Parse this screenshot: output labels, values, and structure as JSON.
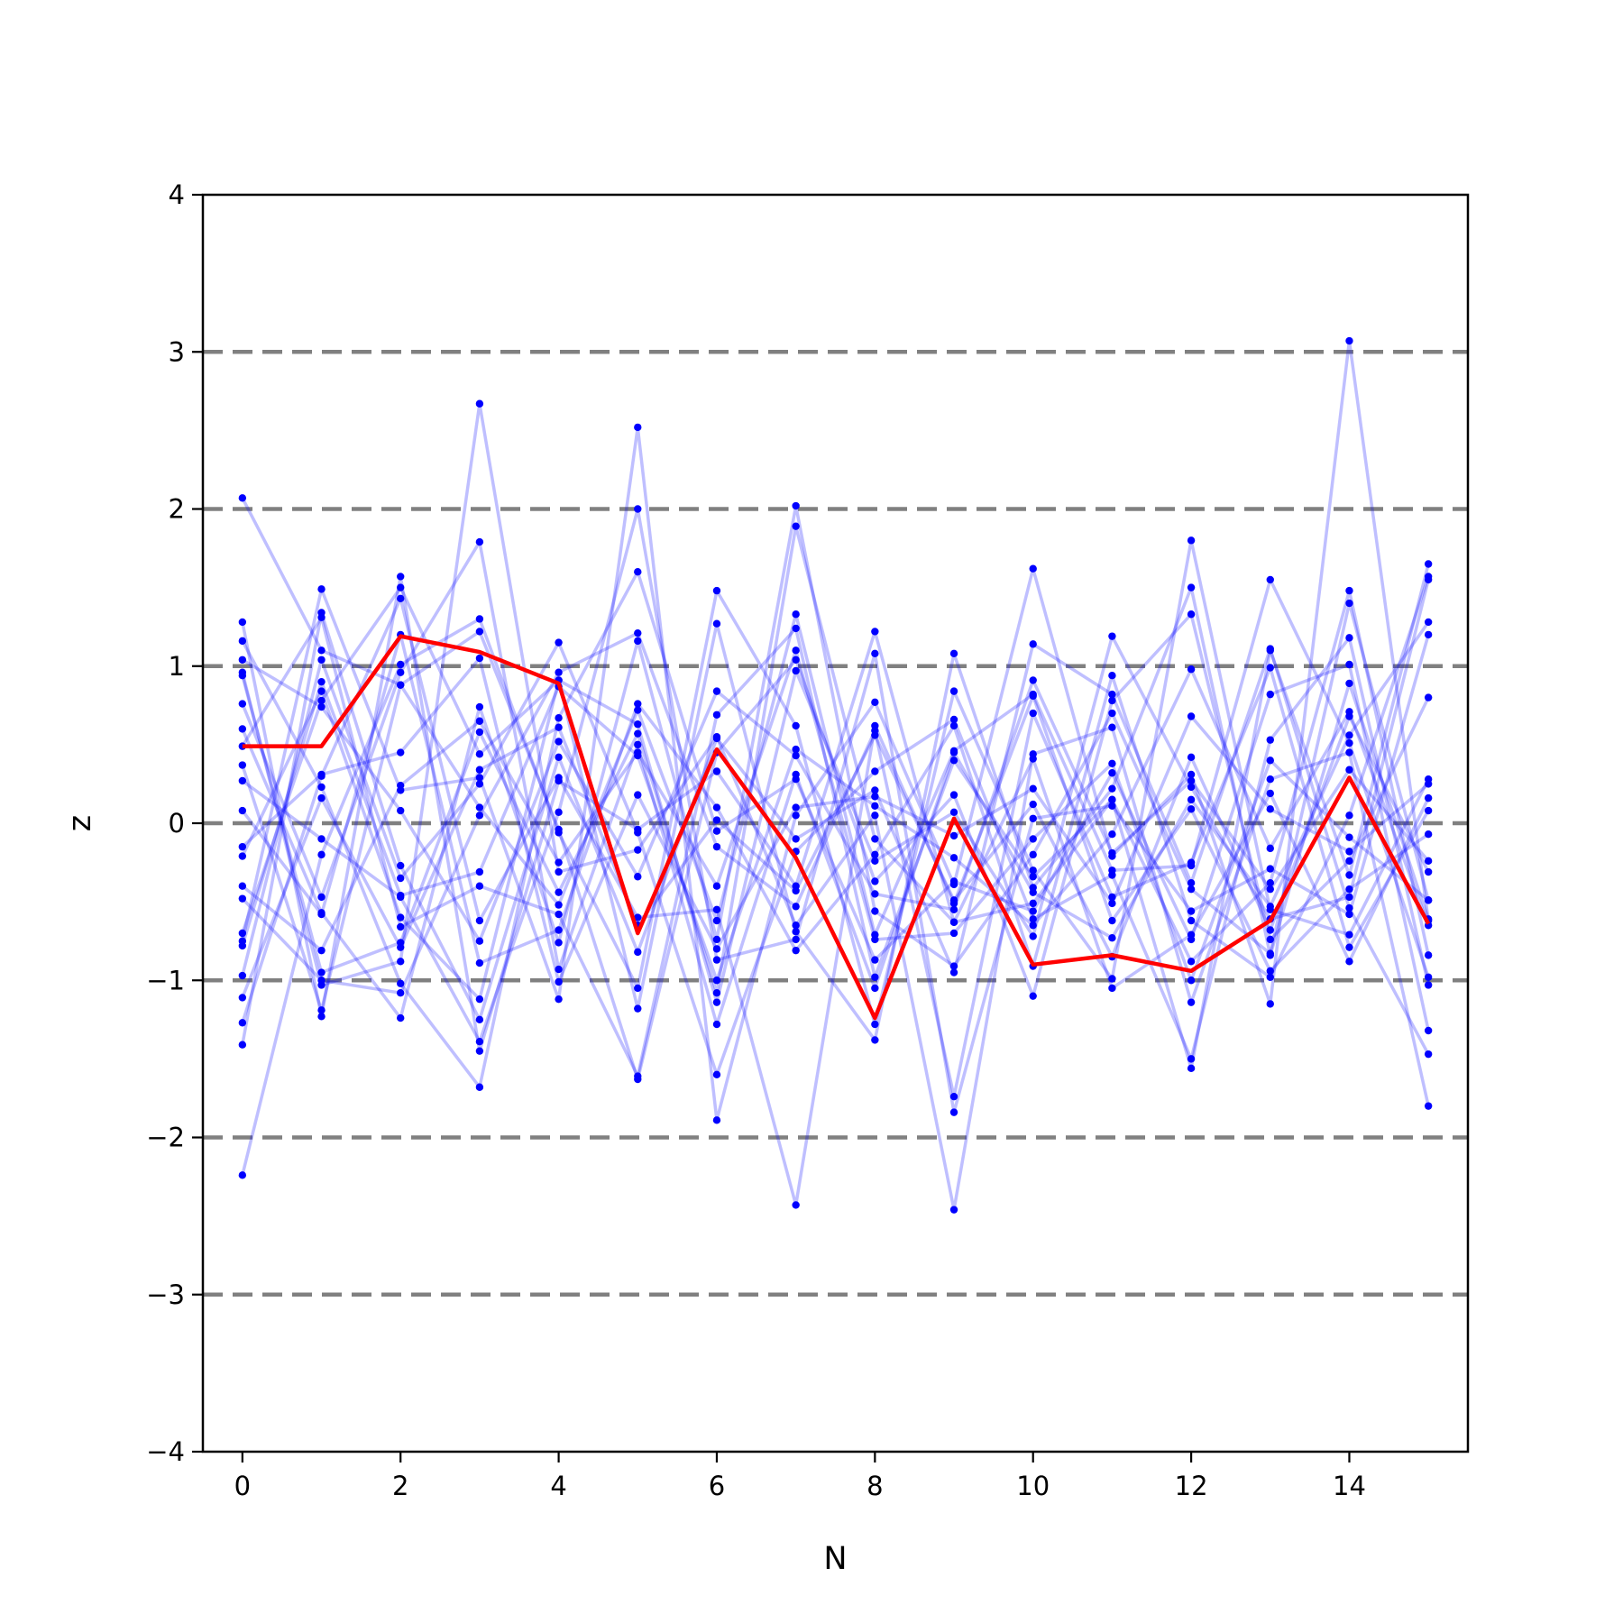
{
  "chart_data": {
    "type": "line",
    "title": "",
    "xlabel": "N",
    "ylabel": "z",
    "xlim": [
      -0.5,
      15.5
    ],
    "ylim": [
      -4,
      4
    ],
    "x_ticks": [
      "0",
      "2",
      "4",
      "6",
      "8",
      "10",
      "12",
      "14"
    ],
    "y_ticks": [
      "−4",
      "−3",
      "−2",
      "−1",
      "0",
      "1",
      "2",
      "3",
      "4"
    ],
    "reference_lines": [
      -3,
      -2,
      -1,
      0,
      1,
      2,
      3
    ],
    "grid": false,
    "legend": "none",
    "colors": {
      "background_series": "#0000ff",
      "highlight_series": "#ff0000",
      "reference_line": "#808080",
      "axes": "#000000"
    },
    "x": [
      0,
      1,
      2,
      3,
      4,
      5,
      6,
      7,
      8,
      9,
      10,
      11,
      12,
      13,
      14,
      15
    ],
    "series": [
      {
        "values": [
          2.07,
          1.1,
          0.88,
          0.1,
          -0.52,
          0.72,
          -0.62,
          1.33,
          -0.71,
          0.46,
          0.82,
          -0.3,
          -0.27,
          1.55,
          0.51,
          -0.98
        ]
      },
      {
        "values": [
          -0.75,
          1.49,
          0.21,
          0.29,
          -1.12,
          2.52,
          -1.89,
          0.05,
          0.77,
          -0.39,
          1.62,
          -0.21,
          0.31,
          -1.15,
          3.07,
          -0.62
        ]
      },
      {
        "values": [
          1.28,
          -1.23,
          1.57,
          -1.45,
          0.27,
          -0.04,
          0.33,
          -0.4,
          1.22,
          -0.63,
          -0.51,
          0.15,
          -1.56,
          1.1,
          -0.33,
          1.65
        ]
      },
      {
        "values": [
          -2.24,
          -0.2,
          1.01,
          1.3,
          -0.06,
          -1.05,
          1.48,
          0.62,
          -1.28,
          0.84,
          -0.3,
          -0.99,
          1.8,
          -0.55,
          -0.71,
          0.28
        ]
      },
      {
        "values": [
          0.96,
          -1.03,
          -0.88,
          2.67,
          -0.31,
          -0.17,
          0.55,
          -0.65,
          0.05,
          -2.46,
          0.44,
          0.61,
          -1.14,
          0.28,
          0.45,
          -1.8
        ]
      },
      {
        "values": [
          -0.21,
          0.84,
          -0.6,
          -1.12,
          0.91,
          0.63,
          -1.14,
          0.97,
          -0.24,
          0.07,
          -0.72,
          1.19,
          0.23,
          -0.61,
          -0.47,
          1.55
        ]
      },
      {
        "values": [
          0.6,
          -0.57,
          -1.24,
          0.74,
          -0.76,
          1.16,
          -0.74,
          2.02,
          -0.56,
          -0.91,
          -0.2,
          0.7,
          -0.42,
          -0.83,
          1.4,
          -0.49
        ]
      },
      {
        "values": [
          -1.27,
          0.3,
          1.43,
          -0.62,
          0.29,
          -0.6,
          -0.55,
          -2.43,
          0.62,
          -0.51,
          0.81,
          -0.62,
          0.09,
          -0.94,
          -0.42,
          -0.07
        ]
      },
      {
        "values": [
          1.16,
          0.23,
          -1.02,
          -1.68,
          0.67,
          1.6,
          -0.05,
          0.28,
          -0.87,
          -0.37,
          -0.56,
          0.32,
          -0.74,
          0.82,
          1.01,
          -1.32
        ]
      },
      {
        "values": [
          0.37,
          -1.19,
          0.88,
          1.22,
          -0.04,
          -1.63,
          0.45,
          1.04,
          -0.37,
          0.18,
          -1.1,
          0.78,
          1.33,
          -0.74,
          -0.24,
          0.8
        ]
      },
      {
        "values": [
          -0.97,
          1.04,
          -0.35,
          0.25,
          1.15,
          -0.06,
          -1.6,
          -0.18,
          0.33,
          0.66,
          -0.61,
          -0.33,
          -1.5,
          0.53,
          1.18,
          -1.03
        ]
      },
      {
        "values": [
          0.27,
          -0.1,
          -0.47,
          -1.39,
          0.07,
          2.0,
          -0.87,
          -0.74,
          1.08,
          -1.84,
          0.03,
          0.11,
          -0.56,
          -0.29,
          -0.58,
          1.2
        ]
      },
      {
        "values": [
          -0.7,
          0.78,
          1.5,
          0.44,
          0.91,
          -1.18,
          1.27,
          -0.69,
          -1.38,
          1.08,
          -0.41,
          0.22,
          1.5,
          -0.84,
          0.89,
          -0.61
        ]
      },
      {
        "values": [
          0.94,
          -0.95,
          -0.76,
          0.58,
          -0.44,
          0.57,
          -1.08,
          1.89,
          -0.1,
          -0.63,
          0.41,
          -1.05,
          -0.71,
          0.19,
          -0.88,
          0.16
        ]
      },
      {
        "values": [
          -1.41,
          1.34,
          -0.27,
          -1.25,
          0.42,
          -0.82,
          0.54,
          -0.1,
          0.21,
          -0.95,
          1.14,
          0.82,
          -0.38,
          1.11,
          -0.54,
          -1.47
        ]
      },
      {
        "values": [
          0.76,
          -0.47,
          0.96,
          1.79,
          -0.93,
          0.5,
          -1.28,
          0.31,
          -1.05,
          0.45,
          -0.44,
          -0.73,
          0.15,
          -0.53,
          0.56,
          1.28
        ]
      },
      {
        "values": [
          -0.48,
          -1.0,
          -1.08,
          0.05,
          0.96,
          1.21,
          -0.15,
          -0.53,
          0.59,
          -1.74,
          0.7,
          -0.47,
          -0.25,
          0.99,
          -0.79,
          0.08
        ]
      },
      {
        "values": [
          0.49,
          1.31,
          -0.66,
          -0.4,
          -0.58,
          -1.61,
          0.69,
          1.24,
          -0.98,
          0.4,
          -0.34,
          0.15,
          -0.88,
          -0.38,
          1.48,
          -0.84
        ]
      },
      {
        "values": [
          -0.15,
          0.31,
          0.45,
          1.05,
          -1.01,
          0.18,
          -0.8,
          0.1,
          0.17,
          -0.08,
          0.22,
          -0.51,
          0.68,
          0.09,
          -0.18,
          0.25
        ]
      },
      {
        "values": [
          -0.78,
          0.9,
          -0.46,
          -0.31,
          0.87,
          0.43,
          -1.0,
          0.47,
          0.11,
          -0.22,
          -0.65,
          -0.07,
          0.98,
          -0.16,
          0.71,
          -0.65
        ]
      },
      {
        "values": [
          0.08,
          -0.58,
          1.2,
          -0.89,
          -0.68,
          0.76,
          0.1,
          -0.81,
          -0.2,
          0.62,
          -0.91,
          0.94,
          -0.62,
          -0.98,
          0.05,
          1.57
        ]
      },
      {
        "values": [
          1.04,
          0.74,
          0.08,
          -0.75,
          0.52,
          -0.34,
          0.84,
          0.43,
          -0.45,
          -0.55,
          0.91,
          -0.19,
          0.27,
          -0.42,
          0.34,
          -0.24
        ]
      },
      {
        "values": [
          -0.4,
          -0.81,
          0.24,
          0.65,
          -0.25,
          0.45,
          -0.4,
          1.1,
          -0.74,
          -0.7,
          -0.1,
          0.38,
          -1.0,
          0.4,
          -0.09,
          -0.49
        ]
      },
      {
        "values": [
          -1.11,
          0.16,
          -0.79,
          0.34,
          0.61,
          -0.65,
          0.02,
          -0.43,
          0.56,
          -0.49,
          0.12,
          -0.85,
          0.42,
          -0.68,
          0.68,
          -0.31
        ]
      }
    ],
    "highlight_series": {
      "values": [
        0.49,
        0.49,
        1.19,
        1.09,
        0.89,
        -0.7,
        0.47,
        -0.22,
        -1.24,
        0.03,
        -0.9,
        -0.84,
        -0.94,
        -0.62,
        0.29,
        -0.64
      ]
    }
  }
}
